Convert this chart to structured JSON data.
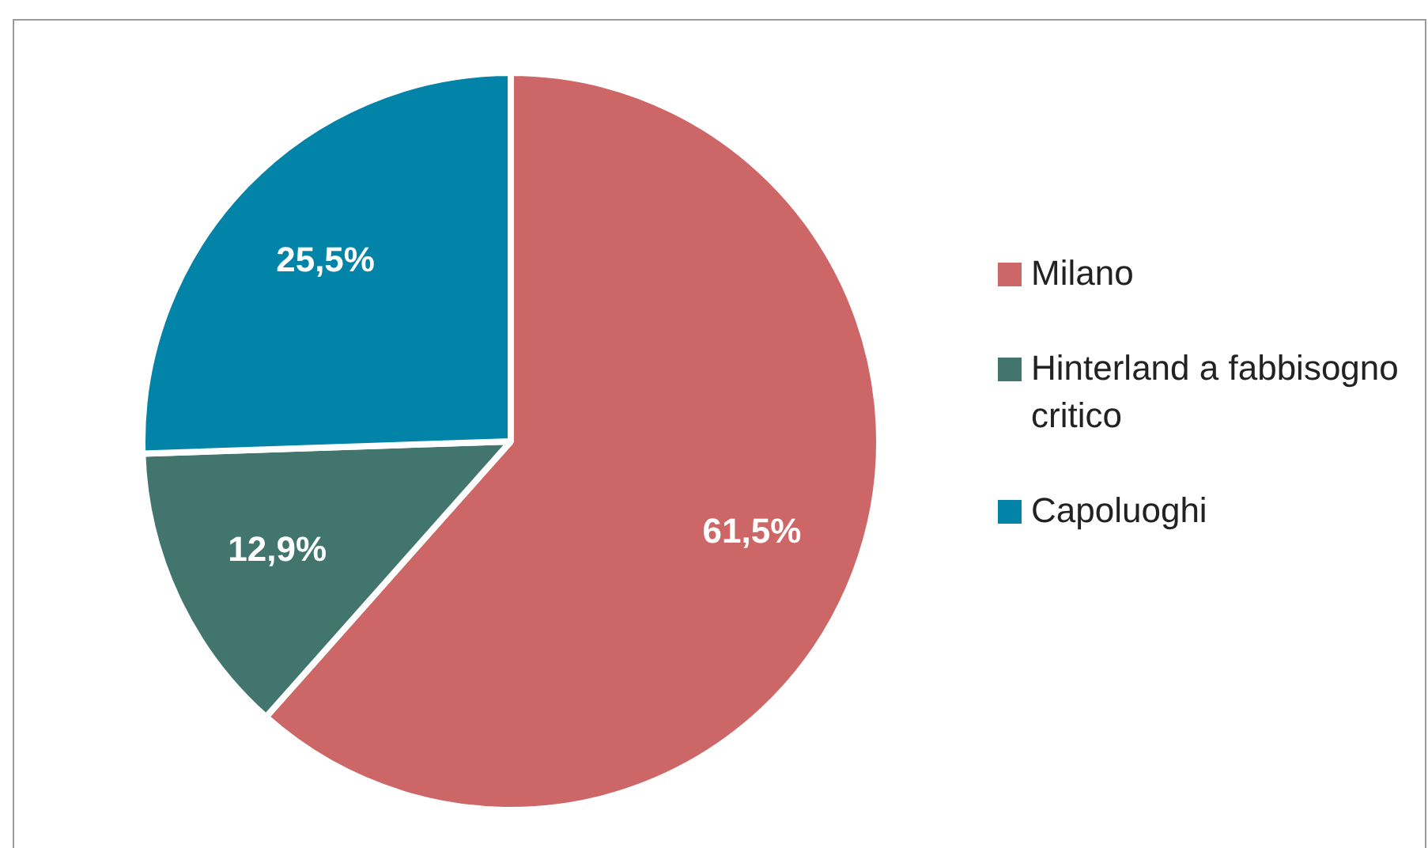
{
  "chart_data": {
    "type": "pie",
    "categories": [
      "Milano",
      "Hinterland a fabbisogno critico",
      "Capoluoghi"
    ],
    "values": [
      61.5,
      12.9,
      25.5
    ],
    "colors": [
      "#cd6666",
      "#41756d",
      "#0283a8"
    ],
    "value_labels": [
      "61,5%",
      "12,9%",
      "25,5%"
    ],
    "legend": "right"
  }
}
